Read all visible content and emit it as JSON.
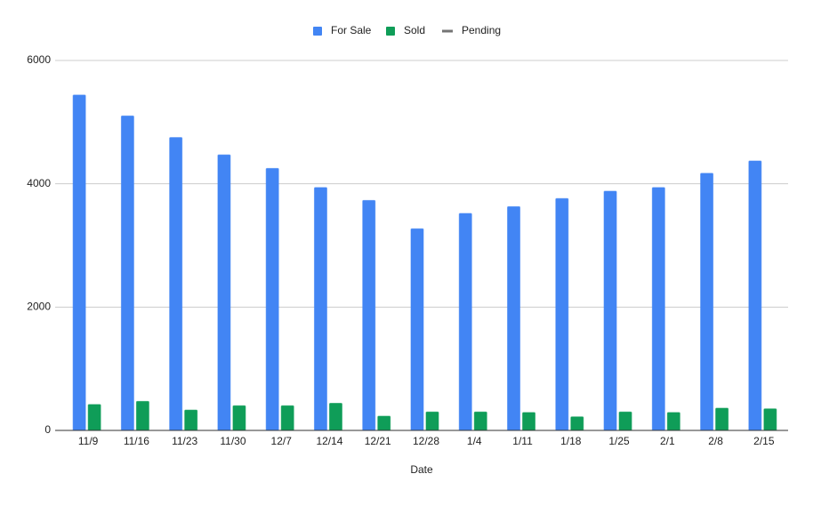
{
  "chart_data": {
    "type": "bar",
    "x_label": "Date",
    "categories": [
      "11/9",
      "11/16",
      "11/23",
      "11/30",
      "12/7",
      "12/14",
      "12/21",
      "12/28",
      "1/4",
      "1/11",
      "1/18",
      "1/25",
      "2/1",
      "2/8",
      "2/15"
    ],
    "series": [
      {
        "name": "For Sale",
        "color": "#4285f4",
        "values": [
          5440,
          5100,
          4750,
          4470,
          4250,
          3940,
          3730,
          3270,
          3520,
          3630,
          3760,
          3880,
          3940,
          4170,
          4370
        ]
      },
      {
        "name": "Sold",
        "color": "#0f9d58",
        "values": [
          420,
          470,
          330,
          400,
          400,
          440,
          230,
          300,
          300,
          290,
          220,
          300,
          290,
          360,
          350
        ]
      },
      {
        "name": "Pending",
        "color": "#757575",
        "legend_style": "line",
        "values": [
          null,
          null,
          null,
          null,
          null,
          null,
          null,
          null,
          null,
          null,
          null,
          null,
          null,
          null,
          null
        ]
      }
    ],
    "ylim": [
      0,
      6000
    ],
    "yticks": [
      0,
      2000,
      4000,
      6000
    ],
    "grid": true,
    "legend": "top"
  }
}
